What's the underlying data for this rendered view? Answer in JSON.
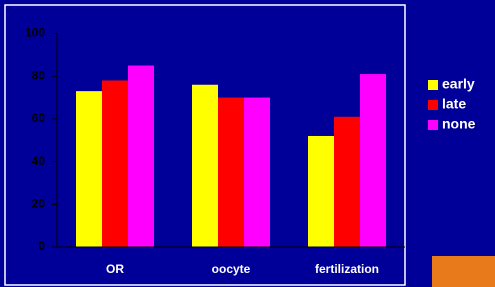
{
  "chart_data": {
    "type": "bar",
    "categories": [
      "OR",
      "oocyte",
      "fertilization"
    ],
    "series": [
      {
        "name": "early",
        "color": "#ffff00",
        "values": [
          73,
          76,
          52
        ]
      },
      {
        "name": "late",
        "color": "#ff0000",
        "values": [
          78,
          70,
          61
        ]
      },
      {
        "name": "none",
        "color": "#ff00ff",
        "values": [
          85,
          70,
          81
        ]
      }
    ],
    "ylim": [
      0,
      100
    ],
    "yticks": [
      0,
      20,
      40,
      60,
      80,
      100
    ],
    "grid": false,
    "legend": "right"
  }
}
